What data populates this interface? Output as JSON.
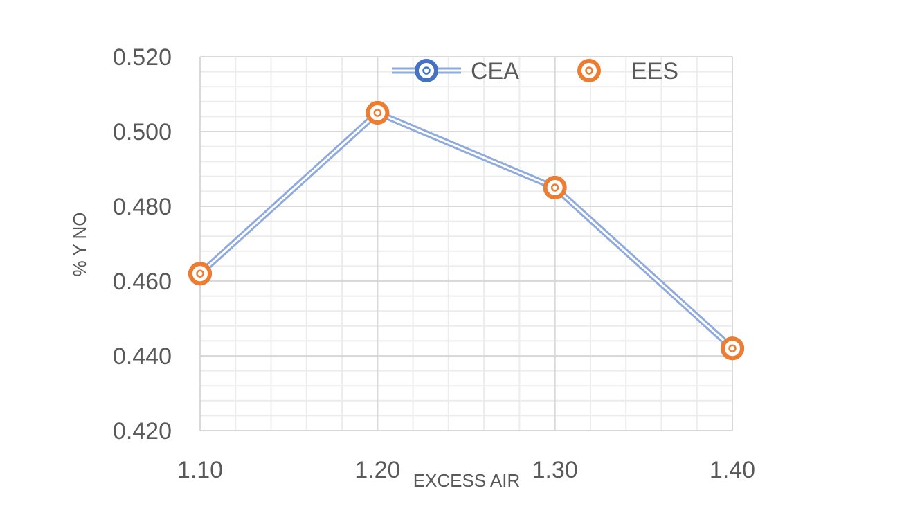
{
  "chart_data": {
    "type": "line",
    "title": "",
    "xlabel": "EXCESS AIR",
    "ylabel": "% Y NO",
    "x": [
      1.1,
      1.2,
      1.3,
      1.4
    ],
    "x_tick_labels": [
      "1.10",
      "1.20",
      "1.30",
      "1.40"
    ],
    "xlim": [
      1.1,
      1.4
    ],
    "ylim": [
      0.42,
      0.52
    ],
    "y_tick_labels": [
      "0.520",
      "0.500",
      "0.480",
      "0.460",
      "0.440",
      "0.420"
    ],
    "grid": true,
    "legend_position": "top",
    "series": [
      {
        "name": "CEA",
        "values": [
          0.462,
          0.505,
          0.485,
          0.442
        ],
        "color": "#4472C4",
        "line_color": "#8FAADC",
        "marker": "bullseye",
        "line": true
      },
      {
        "name": "EES",
        "values": [
          0.462,
          0.505,
          0.485,
          0.442
        ],
        "color": "#ED7D31",
        "marker": "bullseye",
        "line": false
      }
    ]
  }
}
